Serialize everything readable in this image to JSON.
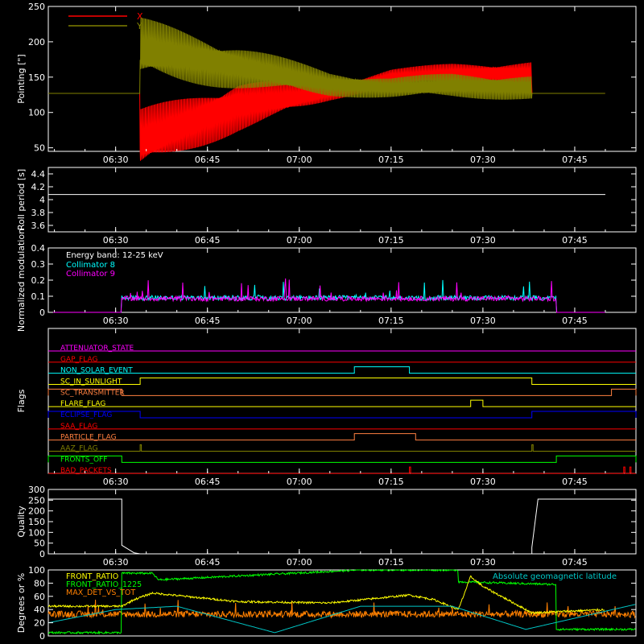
{
  "chart_data": [
    {
      "type": "line",
      "ylabel": "Pointing [\"]",
      "ylim": [
        45,
        250
      ],
      "yticks": [
        50,
        100,
        150,
        200,
        250
      ],
      "xlabels": [
        "06:30",
        "06:45",
        "07:00",
        "07:15",
        "07:30",
        "07:45"
      ],
      "legend_position": "top-left",
      "series": [
        {
          "name": "X",
          "color": "#ff0000",
          "x": [
            "06:19",
            "06:34",
            "06:34",
            "06:50",
            "07:05",
            "07:15",
            "07:25",
            "07:38",
            "07:38",
            "07:50"
          ],
          "y": [
            127,
            127,
            60,
            110,
            128,
            150,
            155,
            155,
            127,
            127
          ],
          "amplitude": [
            0,
            0,
            45,
            38,
            12,
            12,
            15,
            18,
            0,
            0
          ]
        },
        {
          "name": "Y",
          "color": "#808000",
          "x": [
            "06:19",
            "06:34",
            "06:34",
            "06:50",
            "07:05",
            "07:15",
            "07:25",
            "07:38",
            "07:38",
            "07:50"
          ],
          "y": [
            127,
            127,
            190,
            165,
            140,
            135,
            138,
            135,
            127,
            127
          ],
          "amplitude": [
            0,
            0,
            45,
            32,
            18,
            15,
            18,
            18,
            0,
            0
          ]
        }
      ]
    },
    {
      "type": "line",
      "ylabel": "Roll period [s]",
      "ylim": [
        3.5,
        4.5
      ],
      "yticks": [
        3.6,
        3.8,
        4.0,
        4.2,
        4.4
      ],
      "xlabels": [
        "06:30",
        "06:45",
        "07:00",
        "07:15",
        "07:30",
        "07:45"
      ],
      "series": [
        {
          "color": "#ffffff",
          "x": [
            "06:19",
            "07:50"
          ],
          "y": [
            4.08,
            4.08
          ]
        }
      ]
    },
    {
      "type": "line",
      "ylabel": "Normalized modulation",
      "ylim": [
        0,
        0.4
      ],
      "yticks": [
        0.0,
        0.1,
        0.2,
        0.3,
        0.4
      ],
      "xlabels": [
        "06:30",
        "06:45",
        "07:00",
        "07:15",
        "07:30",
        "07:45"
      ],
      "annotation": "Energy band: 12-25 keV",
      "legend_position": "top-left",
      "series": [
        {
          "name": "Collimator 8",
          "color": "#00ffff",
          "x": [
            "06:19",
            "06:31",
            "06:31",
            "07:42",
            "07:42",
            "07:50"
          ],
          "y": [
            0,
            0,
            0.09,
            0.09,
            0,
            0
          ]
        },
        {
          "name": "Collimator 9",
          "color": "#ff00ff",
          "x": [
            "06:19",
            "06:31",
            "06:31",
            "07:42",
            "07:42",
            "07:50"
          ],
          "y": [
            0,
            0,
            0.085,
            0.085,
            0,
            0
          ]
        }
      ]
    },
    {
      "type": "line",
      "ylabel": "Flags",
      "xlabels": [
        "06:30",
        "06:45",
        "07:00",
        "07:15",
        "07:30",
        "07:45"
      ],
      "flags": [
        {
          "name": "ATTENUATOR_STATE",
          "color": "#ff00ff",
          "on": []
        },
        {
          "name": "GAP_FLAG",
          "color": "#ff0000",
          "on": []
        },
        {
          "name": "NON_SOLAR_EVENT",
          "color": "#00ffff",
          "on": [
            [
              "07:09",
              "07:18"
            ]
          ]
        },
        {
          "name": "SC_IN_SUNLIGHT",
          "color": "#ffff00",
          "on": [
            [
              "06:34",
              "07:38"
            ]
          ]
        },
        {
          "name": "SC_TRANSMITTER",
          "color": "#ff8040",
          "on": [
            [
              "06:19",
              "06:31"
            ],
            [
              "07:51",
              "07:55"
            ]
          ]
        },
        {
          "name": "FLARE_FLAG",
          "color": "#ffff00",
          "on": [
            [
              "07:28",
              "07:30"
            ]
          ]
        },
        {
          "name": "ECLIPSE_FLAG",
          "color": "#0000ff",
          "on": [
            [
              "06:19",
              "06:34"
            ],
            [
              "07:38",
              "07:55"
            ]
          ]
        },
        {
          "name": "SAA_FLAG",
          "color": "#ff0000",
          "on": []
        },
        {
          "name": "PARTICLE_FLAG",
          "color": "#ff8040",
          "on": [
            [
              "07:09",
              "07:19"
            ]
          ]
        },
        {
          "name": "AAZ_FLAG",
          "color": "#808000",
          "on": [
            [
              "06:34",
              "06:34"
            ],
            [
              "07:38",
              "07:38"
            ]
          ]
        },
        {
          "name": "FRONTS_OFF",
          "color": "#00ff00",
          "on": [
            [
              "06:19",
              "06:31"
            ],
            [
              "07:42",
              "07:55"
            ]
          ]
        },
        {
          "name": "BAD_PACKETS",
          "color": "#ff0000",
          "on": [
            [
              "07:18",
              "07:18"
            ],
            [
              "07:53",
              "07:53"
            ],
            [
              "07:54",
              "07:54"
            ]
          ]
        }
      ]
    },
    {
      "type": "line",
      "ylabel": "Quality",
      "ylim": [
        0,
        300
      ],
      "yticks": [
        0,
        50,
        100,
        150,
        200,
        250,
        300
      ],
      "xlabels": [
        "06:30",
        "06:45",
        "07:00",
        "07:15",
        "07:30",
        "07:45"
      ],
      "series": [
        {
          "color": "#ffffff",
          "x": [
            "06:19",
            "06:31",
            "06:31",
            "06:33",
            "06:34",
            "07:38",
            "07:38",
            "07:39",
            "07:39",
            "07:55"
          ],
          "y": [
            255,
            255,
            40,
            5,
            0,
            0,
            30,
            255,
            255,
            255
          ]
        }
      ]
    },
    {
      "type": "line",
      "ylabel": "Degrees or %",
      "ylim": [
        0,
        100
      ],
      "yticks": [
        0,
        20,
        40,
        60,
        80,
        100
      ],
      "xlabels": [
        "06:30",
        "06:45",
        "07:00",
        "07:15",
        "07:30",
        "07:45"
      ],
      "legend_position": "top-left",
      "series": [
        {
          "name": "FRONT_RATIO",
          "color": "#ffff00",
          "x": [
            "06:19",
            "06:31",
            "06:33",
            "06:36",
            "06:50",
            "07:05",
            "07:18",
            "07:22",
            "07:26",
            "07:28",
            "07:30",
            "07:38",
            "07:50"
          ],
          "y": [
            45,
            45,
            55,
            65,
            52,
            50,
            62,
            55,
            40,
            90,
            75,
            35,
            40
          ]
        },
        {
          "name": "FRONT_RATIO_1225",
          "color": "#00ff00",
          "x": [
            "06:19",
            "06:31",
            "06:31",
            "06:36",
            "06:37",
            "07:10",
            "07:26",
            "07:26",
            "07:42",
            "07:42",
            "07:55"
          ],
          "y": [
            5,
            5,
            95,
            95,
            85,
            100,
            100,
            82,
            78,
            10,
            10
          ]
        },
        {
          "name": "MAX_DET_VS_TOT",
          "color": "#ff8000",
          "x": [
            "06:19",
            "07:55"
          ],
          "y": [
            33,
            33
          ]
        },
        {
          "name": "Absolute geomagnetic latitude",
          "color": "#00c8c8",
          "x": [
            "06:19",
            "06:30",
            "06:40",
            "06:56",
            "07:10",
            "07:25",
            "07:37",
            "07:55"
          ],
          "y": [
            20,
            40,
            45,
            5,
            45,
            45,
            10,
            48
          ]
        }
      ]
    }
  ]
}
